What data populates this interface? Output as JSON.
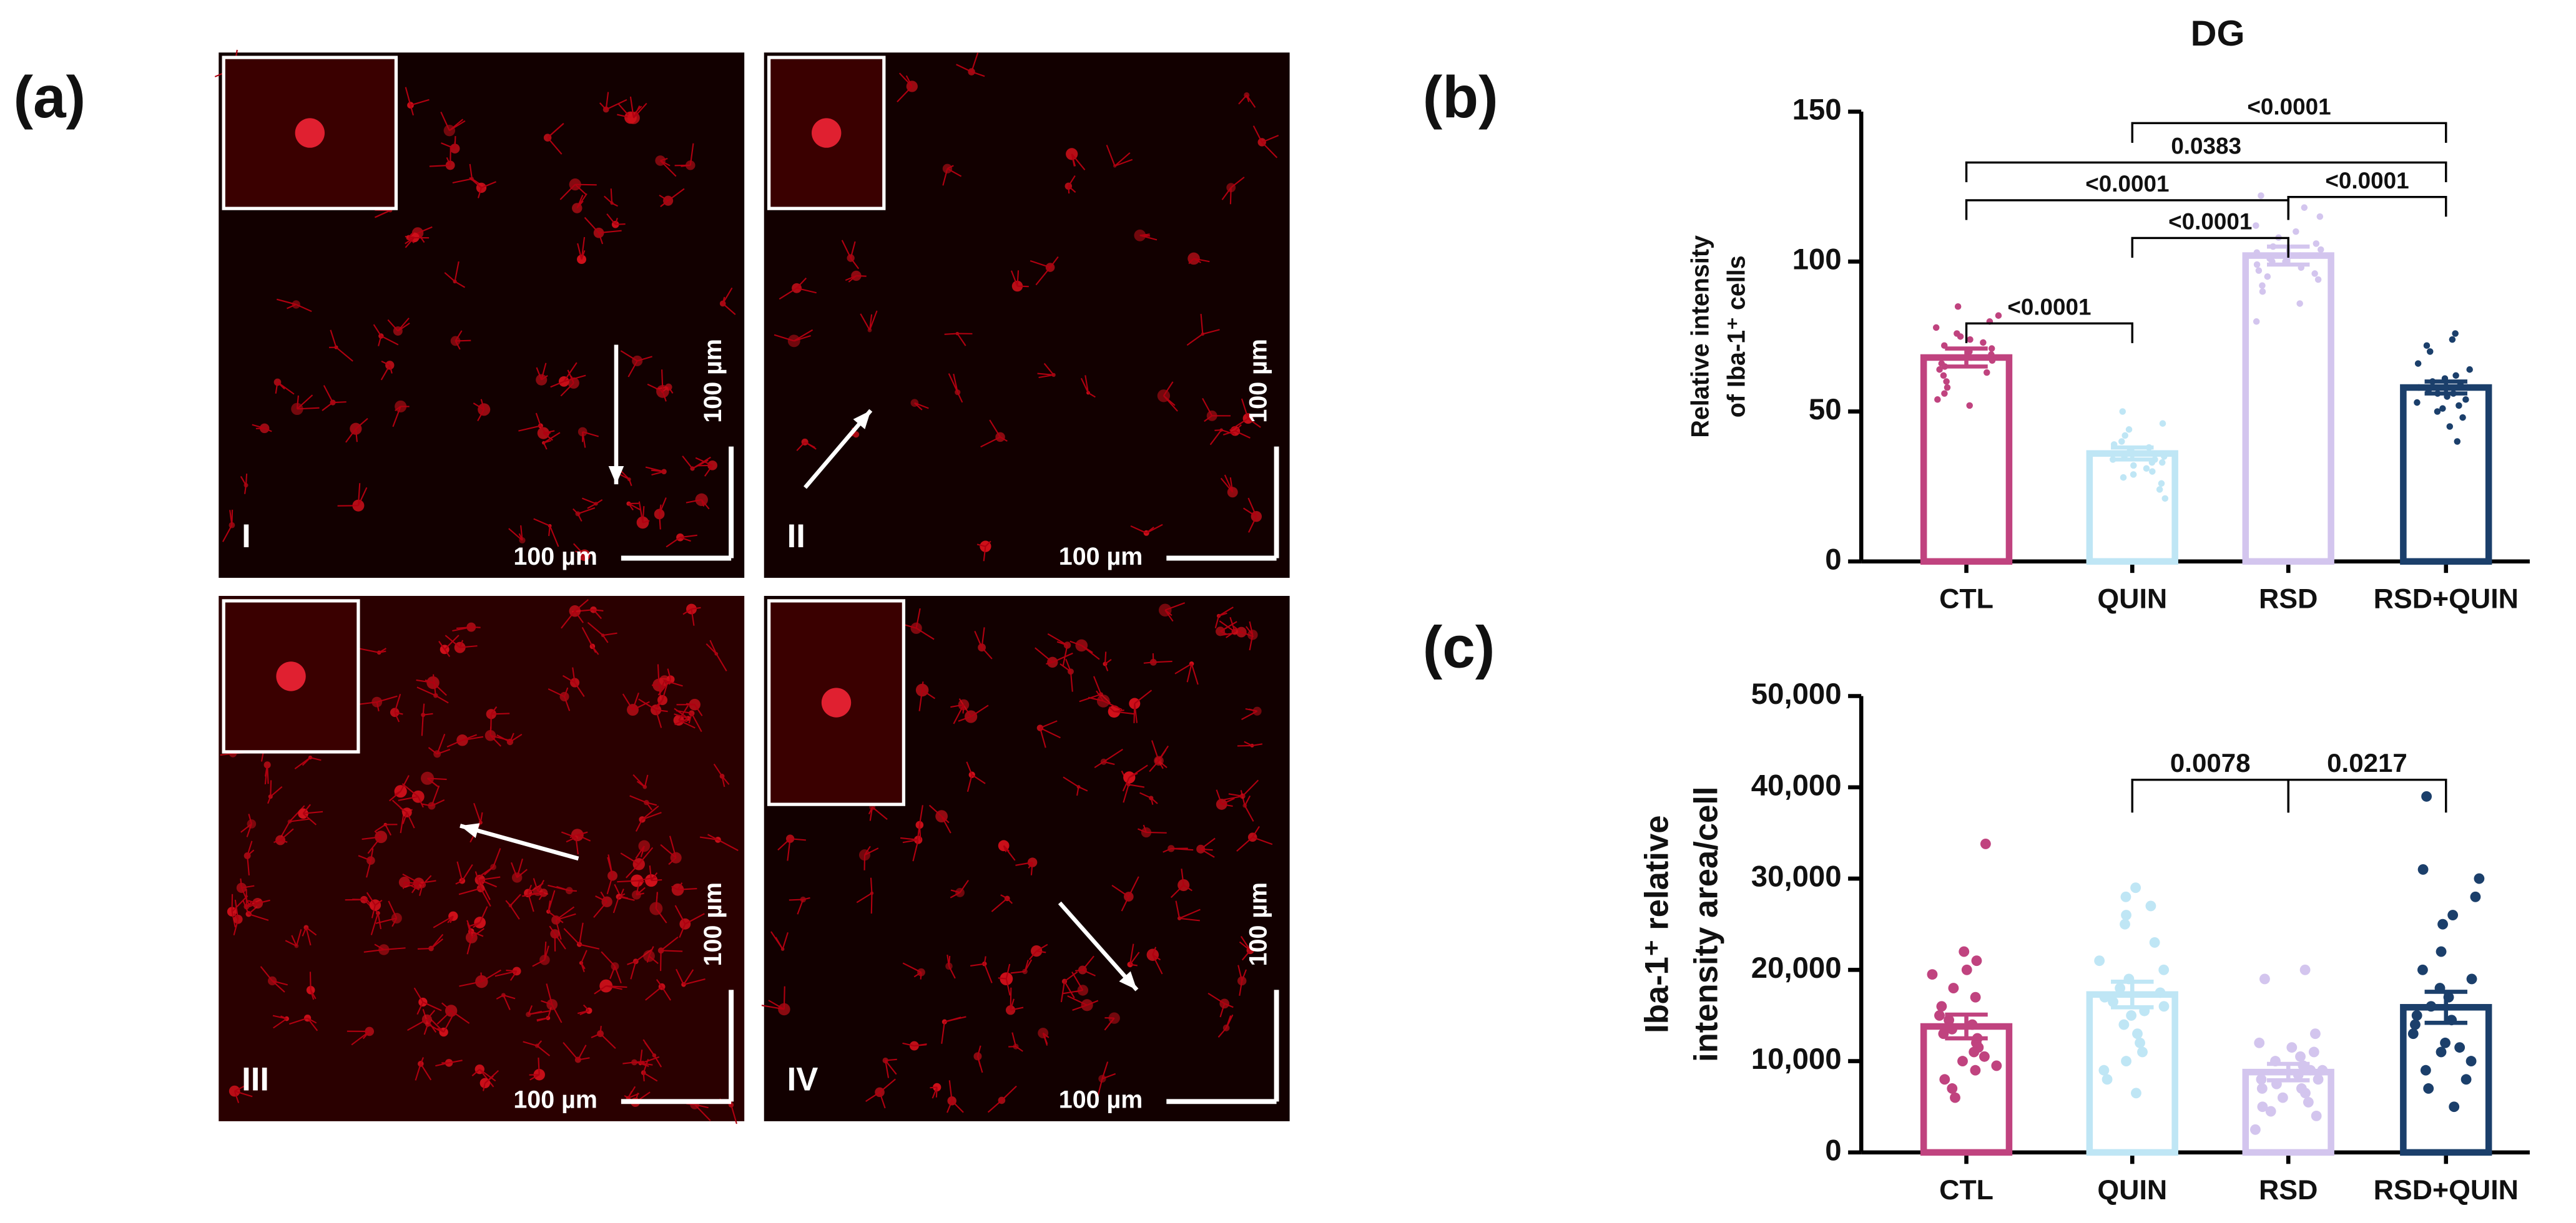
{
  "panels": {
    "a": "(a)",
    "b": "(b)",
    "c": "(c)"
  },
  "images": [
    {
      "label": "I",
      "scale_x": "100 µm",
      "scale_y": "100 µm"
    },
    {
      "label": "II",
      "scale_x": "100 µm",
      "scale_y": "100 µm"
    },
    {
      "label": "III",
      "scale_x": "100 µm",
      "scale_y": "100 µm"
    },
    {
      "label": "IV",
      "scale_x": "100 µm",
      "scale_y": "100 µm"
    }
  ],
  "chart_data": [
    {
      "type": "bar",
      "title": "DG",
      "ylabel": [
        "Relative intensity",
        "of Iba-1⁺ cells"
      ],
      "categories": [
        "CTL",
        "QUIN",
        "RSD",
        "RSD+QUIN"
      ],
      "colors": [
        "#c0437f",
        "#bfe6f5",
        "#d3c5ee",
        "#1b3f6b"
      ],
      "values": [
        68,
        36,
        102,
        58
      ],
      "errors": [
        3,
        2,
        3,
        2
      ],
      "points": [
        [
          85,
          82,
          80,
          78,
          76,
          75,
          74,
          73,
          72,
          71,
          70,
          69,
          68,
          67,
          66,
          65,
          64,
          63,
          62,
          60,
          58,
          56,
          54,
          52
        ],
        [
          50,
          46,
          44,
          42,
          40,
          39,
          38,
          37,
          36,
          36,
          35,
          35,
          34,
          34,
          33,
          33,
          32,
          31,
          30,
          29,
          28,
          26,
          24,
          21
        ],
        [
          122,
          118,
          115,
          112,
          110,
          108,
          106,
          105,
          104,
          103,
          102,
          101,
          100,
          100,
          99,
          98,
          97,
          96,
          95,
          94,
          92,
          90,
          86,
          80
        ],
        [
          76,
          74,
          72,
          70,
          66,
          64,
          62,
          61,
          60,
          59,
          58,
          58,
          57,
          56,
          56,
          55,
          54,
          53,
          52,
          51,
          50,
          48,
          45,
          40
        ]
      ],
      "ylim": [
        0,
        150
      ],
      "yticks": [
        0,
        50,
        100,
        150
      ],
      "comparisons": [
        {
          "groups": [
            0,
            1
          ],
          "label": "<0.0001"
        },
        {
          "groups": [
            1,
            2
          ],
          "label": "<0.0001"
        },
        {
          "groups": [
            0,
            2
          ],
          "label": "<0.0001"
        },
        {
          "groups": [
            2,
            3
          ],
          "label": "<0.0001"
        },
        {
          "groups": [
            0,
            3
          ],
          "label": "0.0383"
        },
        {
          "groups": [
            1,
            3
          ],
          "label": "<0.0001"
        }
      ]
    },
    {
      "type": "bar",
      "ylabel": [
        "Iba-1⁺ relative",
        "intensity area/cell"
      ],
      "categories": [
        "CTL",
        "QUIN",
        "RSD",
        "RSD+QUIN"
      ],
      "colors": [
        "#c0437f",
        "#bfe6f5",
        "#d3c5ee",
        "#1b3f6b"
      ],
      "values": [
        13800,
        17300,
        8800,
        15900
      ],
      "errors": [
        1300,
        1400,
        900,
        1700
      ],
      "points": [
        [
          33800,
          22000,
          21000,
          20000,
          19500,
          18000,
          17000,
          16000,
          15000,
          14500,
          14000,
          13500,
          13000,
          12500,
          12000,
          11500,
          11000,
          10500,
          10000,
          9500,
          9000,
          8000,
          7000,
          6000
        ],
        [
          29000,
          28000,
          27000,
          26000,
          25000,
          23000,
          21000,
          20000,
          19000,
          18000,
          17500,
          17000,
          16500,
          16000,
          15500,
          15000,
          14000,
          13000,
          12000,
          11000,
          10000,
          9000,
          8000,
          6500
        ],
        [
          20000,
          19000,
          13000,
          12000,
          11500,
          11000,
          10500,
          10000,
          9500,
          9000,
          9000,
          8500,
          8000,
          8000,
          7500,
          7000,
          7000,
          6500,
          6000,
          5500,
          5000,
          4500,
          4000,
          2500
        ],
        [
          39000,
          31000,
          30000,
          28000,
          26000,
          25000,
          22000,
          20000,
          19000,
          18000,
          17000,
          16000,
          15000,
          14500,
          14000,
          13000,
          12000,
          11500,
          11000,
          10000,
          9000,
          8000,
          7000,
          5000
        ]
      ],
      "ylim": [
        0,
        50000
      ],
      "yticks": [
        0,
        {
          "value": 10000,
          "label": "10,000"
        },
        {
          "value": 20000,
          "label": "20,000"
        },
        {
          "value": 30000,
          "label": "30,000"
        },
        {
          "value": 40000,
          "label": "40,000"
        },
        {
          "value": 50000,
          "label": "50,000"
        }
      ],
      "comparisons": [
        {
          "groups": [
            1,
            2
          ],
          "label": "0.0078"
        },
        {
          "groups": [
            2,
            3
          ],
          "label": "0.0217"
        }
      ]
    }
  ]
}
